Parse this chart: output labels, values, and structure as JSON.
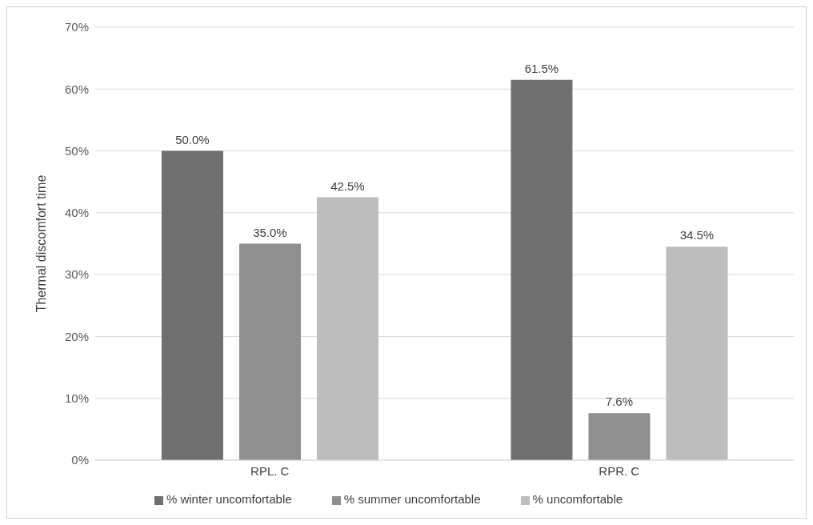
{
  "chart_data": {
    "type": "bar",
    "ylabel": "Thermal discomfort time",
    "categories": [
      "RPL.  C",
      "RPR.  C"
    ],
    "series": [
      {
        "name": "% winter uncomfortable",
        "color": "#6f6f6f",
        "values": [
          50.0,
          61.5
        ],
        "value_labels": [
          "50.0%",
          "61.5%"
        ]
      },
      {
        "name": "% summer uncomfortable",
        "color": "#8f8f8f",
        "values": [
          35.0,
          7.6
        ],
        "value_labels": [
          "35.0%",
          "7.6%"
        ]
      },
      {
        "name": "% uncomfortable",
        "color": "#bdbdbd",
        "values": [
          42.5,
          34.5
        ],
        "value_labels": [
          "42.5%",
          "34.5%"
        ]
      }
    ],
    "ylim": [
      0,
      70
    ],
    "yticks": [
      {
        "value": 0,
        "label": "0%"
      },
      {
        "value": 10,
        "label": "10%"
      },
      {
        "value": 20,
        "label": "20%"
      },
      {
        "value": 30,
        "label": "30%"
      },
      {
        "value": 40,
        "label": "40%"
      },
      {
        "value": 50,
        "label": "50%"
      },
      {
        "value": 60,
        "label": "60%"
      },
      {
        "value": 70,
        "label": "70%"
      }
    ],
    "grid": "y",
    "legend": "bottom"
  }
}
